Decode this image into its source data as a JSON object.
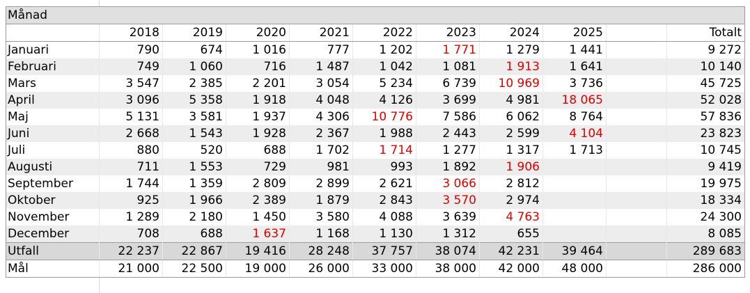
{
  "header": {
    "month_label": "Månad",
    "total_label": "Totalt"
  },
  "years": [
    "2018",
    "2019",
    "2020",
    "2021",
    "2022",
    "2023",
    "2024",
    "2025"
  ],
  "rows": [
    {
      "month": "Januari",
      "values": [
        "790",
        "674",
        "1 016",
        "777",
        "1 202",
        "1 771",
        "1 279",
        "1 441"
      ],
      "total": "9 272",
      "highlight": 5
    },
    {
      "month": "Februari",
      "values": [
        "749",
        "1 060",
        "716",
        "1 487",
        "1 042",
        "1 081",
        "1 913",
        "1 641"
      ],
      "total": "10 140",
      "highlight": 6
    },
    {
      "month": "Mars",
      "values": [
        "3 547",
        "2 385",
        "2 201",
        "3 054",
        "5 234",
        "6 739",
        "10 969",
        "3 736"
      ],
      "total": "45 725",
      "highlight": 6
    },
    {
      "month": "April",
      "values": [
        "3 096",
        "5 358",
        "1 918",
        "4 048",
        "4 126",
        "3 699",
        "4 981",
        "18 065"
      ],
      "total": "52 028",
      "highlight": 7
    },
    {
      "month": "Maj",
      "values": [
        "5 131",
        "3 581",
        "1 937",
        "4 306",
        "10 776",
        "7 586",
        "6 062",
        "8 764"
      ],
      "total": "57 836",
      "highlight": 4
    },
    {
      "month": "Juni",
      "values": [
        "2 668",
        "1 543",
        "1 928",
        "2 367",
        "1 988",
        "2 443",
        "2 599",
        "4 104"
      ],
      "total": "23 823",
      "highlight": 7
    },
    {
      "month": "Juli",
      "values": [
        "880",
        "520",
        "688",
        "1 702",
        "1 714",
        "1 277",
        "1 317",
        "1 713"
      ],
      "total": "10 745",
      "highlight": 4
    },
    {
      "month": "Augusti",
      "values": [
        "711",
        "1 553",
        "729",
        "981",
        "993",
        "1 892",
        "1 906",
        ""
      ],
      "total": "9 419",
      "highlight": 6
    },
    {
      "month": "September",
      "values": [
        "1 744",
        "1 359",
        "2 809",
        "2 899",
        "2 621",
        "3 066",
        "2 812",
        ""
      ],
      "total": "19 975",
      "highlight": 5
    },
    {
      "month": "Oktober",
      "values": [
        "925",
        "1 966",
        "2 389",
        "1 879",
        "2 843",
        "3 570",
        "2 974",
        ""
      ],
      "total": "18 334",
      "highlight": 5
    },
    {
      "month": "November",
      "values": [
        "1 289",
        "2 180",
        "1 450",
        "3 580",
        "4 088",
        "3 639",
        "4 763",
        ""
      ],
      "total": "24 300",
      "highlight": 6
    },
    {
      "month": "December",
      "values": [
        "708",
        "688",
        "1 637",
        "1 168",
        "1 130",
        "1 312",
        "655",
        ""
      ],
      "total": "8 085",
      "highlight": 2
    }
  ],
  "utfall": {
    "label": "Utfall",
    "values": [
      "22 237",
      "22 867",
      "19 416",
      "28 248",
      "37 757",
      "38 074",
      "42 231",
      "39 464"
    ],
    "total": "289 683"
  },
  "mal": {
    "label": "Mål",
    "values": [
      "21 000",
      "22 500",
      "19 000",
      "26 000",
      "33 000",
      "38 000",
      "42 000",
      "48 000"
    ],
    "total": "286 000"
  },
  "colors": {
    "highlight": "#e00000",
    "band": "#ededed",
    "summary": "#d8d8d8"
  }
}
